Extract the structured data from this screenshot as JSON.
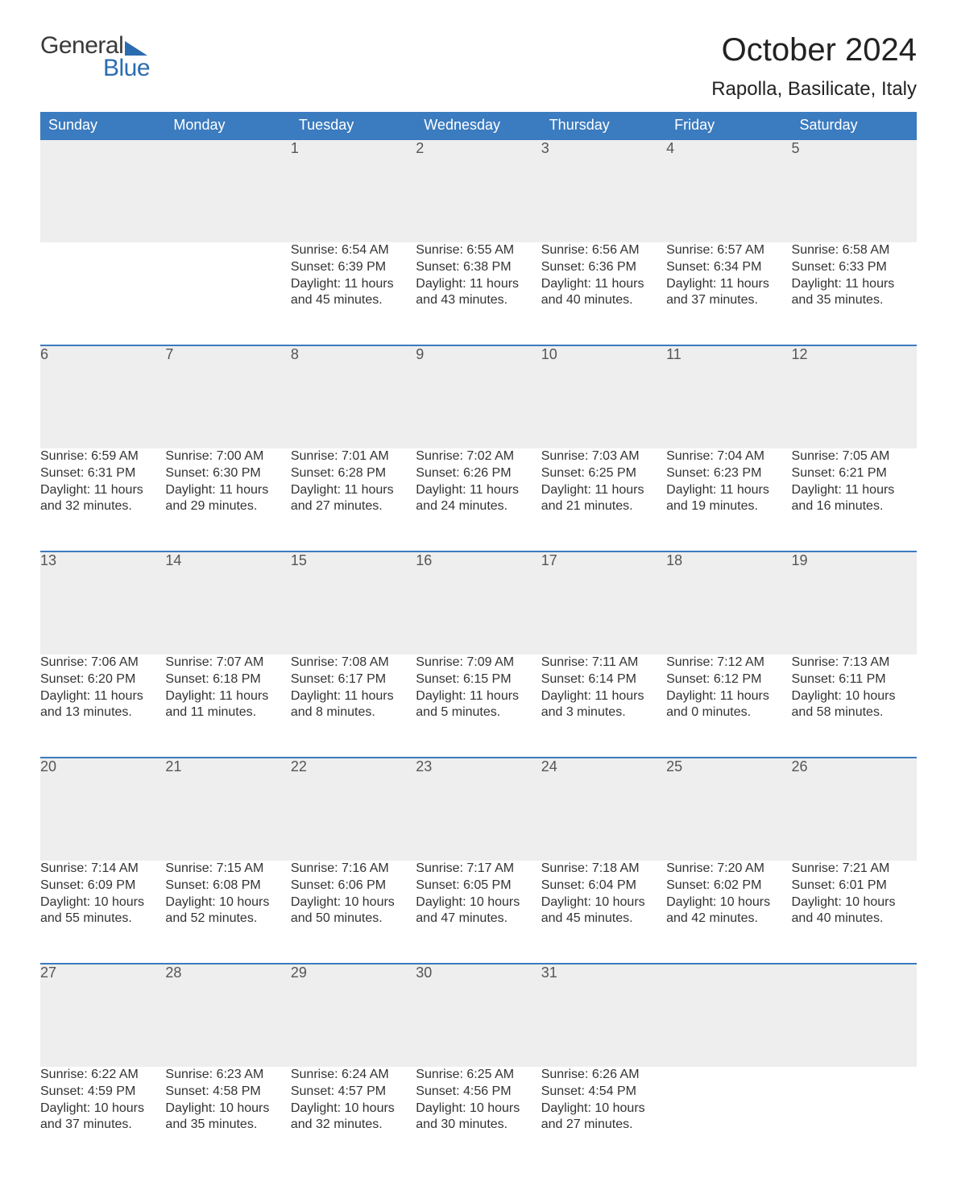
{
  "brand": {
    "line1": "General",
    "line2": "Blue",
    "accent": "#2b6cb0"
  },
  "title": "October 2024",
  "location": "Rapolla, Basilicate, Italy",
  "colors": {
    "header_bg": "#3b7bbf",
    "header_fg": "#ffffff",
    "daynum_bg": "#eeeeee",
    "daynum_border": "#3b7bbf",
    "text": "#333333",
    "bg": "#ffffff"
  },
  "typography": {
    "title_fontsize": 40,
    "location_fontsize": 24,
    "dayhead_fontsize": 18,
    "daynum_fontsize": 18,
    "body_fontsize": 16
  },
  "calendar": {
    "type": "table",
    "day_headers": [
      "Sunday",
      "Monday",
      "Tuesday",
      "Wednesday",
      "Thursday",
      "Friday",
      "Saturday"
    ],
    "weeks": [
      [
        null,
        null,
        {
          "n": 1,
          "sunrise": "6:54 AM",
          "sunset": "6:39 PM",
          "day_h": 11,
          "day_m": 45
        },
        {
          "n": 2,
          "sunrise": "6:55 AM",
          "sunset": "6:38 PM",
          "day_h": 11,
          "day_m": 43
        },
        {
          "n": 3,
          "sunrise": "6:56 AM",
          "sunset": "6:36 PM",
          "day_h": 11,
          "day_m": 40
        },
        {
          "n": 4,
          "sunrise": "6:57 AM",
          "sunset": "6:34 PM",
          "day_h": 11,
          "day_m": 37
        },
        {
          "n": 5,
          "sunrise": "6:58 AM",
          "sunset": "6:33 PM",
          "day_h": 11,
          "day_m": 35
        }
      ],
      [
        {
          "n": 6,
          "sunrise": "6:59 AM",
          "sunset": "6:31 PM",
          "day_h": 11,
          "day_m": 32
        },
        {
          "n": 7,
          "sunrise": "7:00 AM",
          "sunset": "6:30 PM",
          "day_h": 11,
          "day_m": 29
        },
        {
          "n": 8,
          "sunrise": "7:01 AM",
          "sunset": "6:28 PM",
          "day_h": 11,
          "day_m": 27
        },
        {
          "n": 9,
          "sunrise": "7:02 AM",
          "sunset": "6:26 PM",
          "day_h": 11,
          "day_m": 24
        },
        {
          "n": 10,
          "sunrise": "7:03 AM",
          "sunset": "6:25 PM",
          "day_h": 11,
          "day_m": 21
        },
        {
          "n": 11,
          "sunrise": "7:04 AM",
          "sunset": "6:23 PM",
          "day_h": 11,
          "day_m": 19
        },
        {
          "n": 12,
          "sunrise": "7:05 AM",
          "sunset": "6:21 PM",
          "day_h": 11,
          "day_m": 16
        }
      ],
      [
        {
          "n": 13,
          "sunrise": "7:06 AM",
          "sunset": "6:20 PM",
          "day_h": 11,
          "day_m": 13
        },
        {
          "n": 14,
          "sunrise": "7:07 AM",
          "sunset": "6:18 PM",
          "day_h": 11,
          "day_m": 11
        },
        {
          "n": 15,
          "sunrise": "7:08 AM",
          "sunset": "6:17 PM",
          "day_h": 11,
          "day_m": 8
        },
        {
          "n": 16,
          "sunrise": "7:09 AM",
          "sunset": "6:15 PM",
          "day_h": 11,
          "day_m": 5
        },
        {
          "n": 17,
          "sunrise": "7:11 AM",
          "sunset": "6:14 PM",
          "day_h": 11,
          "day_m": 3
        },
        {
          "n": 18,
          "sunrise": "7:12 AM",
          "sunset": "6:12 PM",
          "day_h": 11,
          "day_m": 0
        },
        {
          "n": 19,
          "sunrise": "7:13 AM",
          "sunset": "6:11 PM",
          "day_h": 10,
          "day_m": 58
        }
      ],
      [
        {
          "n": 20,
          "sunrise": "7:14 AM",
          "sunset": "6:09 PM",
          "day_h": 10,
          "day_m": 55
        },
        {
          "n": 21,
          "sunrise": "7:15 AM",
          "sunset": "6:08 PM",
          "day_h": 10,
          "day_m": 52
        },
        {
          "n": 22,
          "sunrise": "7:16 AM",
          "sunset": "6:06 PM",
          "day_h": 10,
          "day_m": 50
        },
        {
          "n": 23,
          "sunrise": "7:17 AM",
          "sunset": "6:05 PM",
          "day_h": 10,
          "day_m": 47
        },
        {
          "n": 24,
          "sunrise": "7:18 AM",
          "sunset": "6:04 PM",
          "day_h": 10,
          "day_m": 45
        },
        {
          "n": 25,
          "sunrise": "7:20 AM",
          "sunset": "6:02 PM",
          "day_h": 10,
          "day_m": 42
        },
        {
          "n": 26,
          "sunrise": "7:21 AM",
          "sunset": "6:01 PM",
          "day_h": 10,
          "day_m": 40
        }
      ],
      [
        {
          "n": 27,
          "sunrise": "6:22 AM",
          "sunset": "4:59 PM",
          "day_h": 10,
          "day_m": 37
        },
        {
          "n": 28,
          "sunrise": "6:23 AM",
          "sunset": "4:58 PM",
          "day_h": 10,
          "day_m": 35
        },
        {
          "n": 29,
          "sunrise": "6:24 AM",
          "sunset": "4:57 PM",
          "day_h": 10,
          "day_m": 32
        },
        {
          "n": 30,
          "sunrise": "6:25 AM",
          "sunset": "4:56 PM",
          "day_h": 10,
          "day_m": 30
        },
        {
          "n": 31,
          "sunrise": "6:26 AM",
          "sunset": "4:54 PM",
          "day_h": 10,
          "day_m": 27
        },
        null,
        null
      ]
    ],
    "labels": {
      "sunrise": "Sunrise:",
      "sunset": "Sunset:",
      "daylight": "Daylight:",
      "hours": "hours",
      "and": "and",
      "minutes": "minutes."
    }
  }
}
